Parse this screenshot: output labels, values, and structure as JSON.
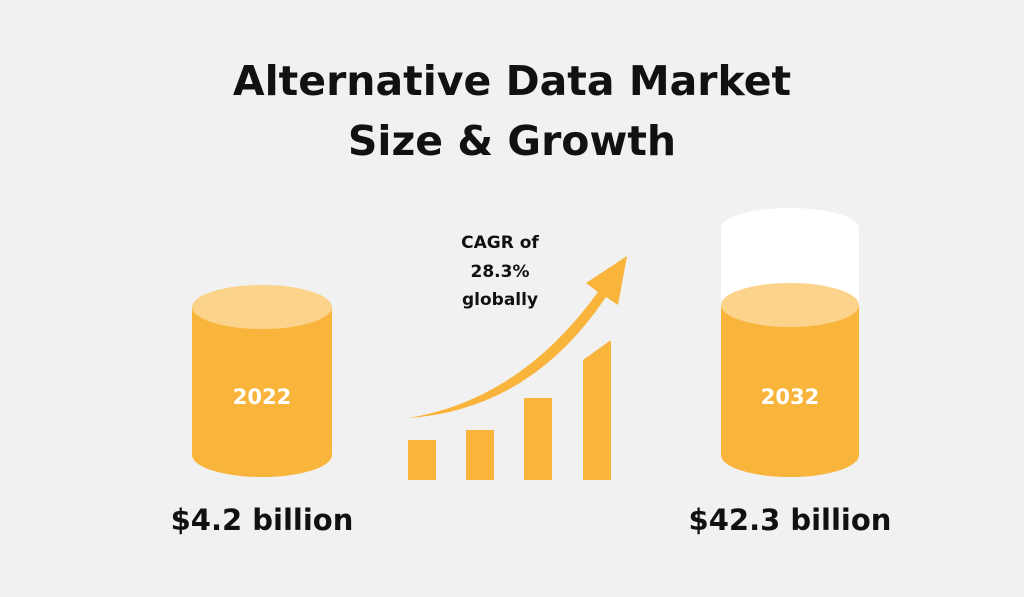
{
  "title": {
    "lines": [
      "Alternative Data Market",
      "Size & Growth"
    ]
  },
  "left": {
    "year": "2022",
    "value": "$4.2 billion"
  },
  "right": {
    "year": "2032",
    "value": "$42.3 billion"
  },
  "growth": {
    "lines": [
      "CAGR of",
      "28.3%",
      "globally"
    ]
  }
}
